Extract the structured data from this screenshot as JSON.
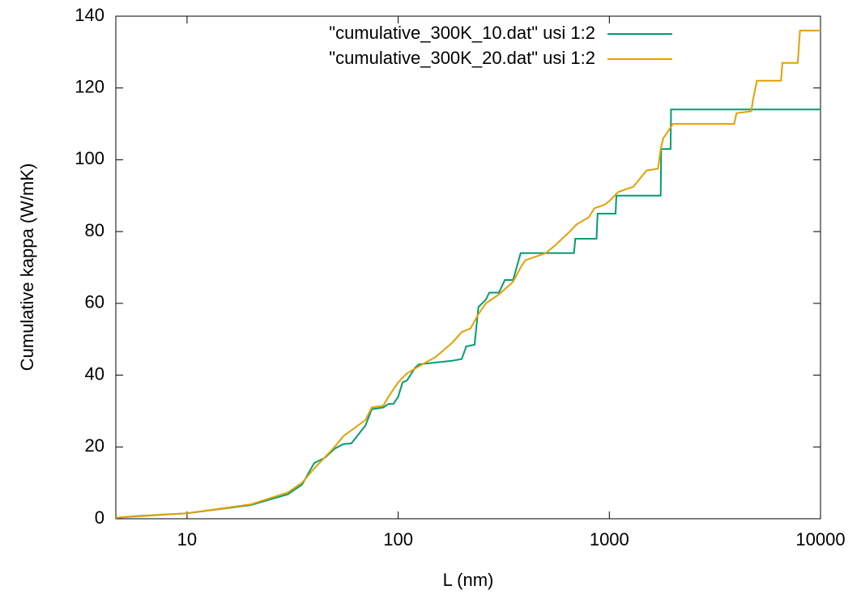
{
  "chart_data": {
    "type": "line",
    "x_label": "L (nm)",
    "y_label": "Cumulative kappa (W/mK)",
    "x_log": true,
    "xlim": [
      4.6,
      10000
    ],
    "xticks": [
      10,
      100,
      1000,
      10000
    ],
    "ylim": [
      0,
      140
    ],
    "yticks": [
      0,
      20,
      40,
      60,
      80,
      100,
      120,
      140
    ],
    "legend": "top-right",
    "series": [
      {
        "name": "\"cumulative_300K_10.dat\" usi 1:2",
        "color": "#009e73",
        "x": [
          4.6,
          6,
          10,
          20,
          30,
          35,
          40,
          45,
          50,
          55,
          60,
          70,
          75,
          85,
          90,
          95,
          100,
          105,
          110,
          120,
          125,
          150,
          180,
          200,
          210,
          230,
          240,
          260,
          270,
          300,
          320,
          350,
          360,
          380,
          680,
          690,
          870,
          880,
          1070,
          1080,
          1750,
          1760,
          1950,
          1960,
          10000
        ],
        "values": [
          0.3,
          0.8,
          1.5,
          3.8,
          6.8,
          9.5,
          15.5,
          17,
          19.5,
          20.8,
          21,
          26,
          30.5,
          31,
          32,
          32,
          34,
          38,
          38.5,
          42,
          43,
          43.5,
          44,
          44.5,
          48,
          48.5,
          59,
          61,
          63,
          63,
          66.5,
          66.5,
          69,
          74,
          74,
          78,
          78,
          85,
          85,
          90,
          90,
          103,
          103,
          114,
          114
        ]
      },
      {
        "name": "\"cumulative_300K_20.dat\" usi 1:2",
        "color": "#e69f00",
        "x": [
          4.6,
          10,
          20,
          30,
          35,
          40,
          50,
          55,
          70,
          75,
          85,
          90,
          100,
          110,
          130,
          150,
          180,
          200,
          220,
          240,
          260,
          300,
          350,
          380,
          400,
          500,
          550,
          650,
          700,
          800,
          850,
          950,
          1000,
          1100,
          1300,
          1500,
          1700,
          1750,
          1800,
          1900,
          2000,
          3900,
          4000,
          4700,
          4800,
          5000,
          6500,
          6600,
          7800,
          8000,
          10000
        ],
        "values": [
          0.3,
          1.5,
          4,
          7.3,
          10,
          14,
          20,
          23,
          27.5,
          31,
          31.5,
          34,
          38,
          40.5,
          43,
          45,
          49,
          52,
          53,
          57,
          60,
          62.5,
          66,
          70,
          72,
          74,
          76,
          80,
          82,
          84,
          86.5,
          87.5,
          88.5,
          91,
          92.5,
          97,
          97.5,
          103,
          106,
          108,
          110,
          110,
          113,
          113.5,
          117,
          122,
          122,
          127,
          127,
          136,
          136
        ]
      }
    ]
  }
}
